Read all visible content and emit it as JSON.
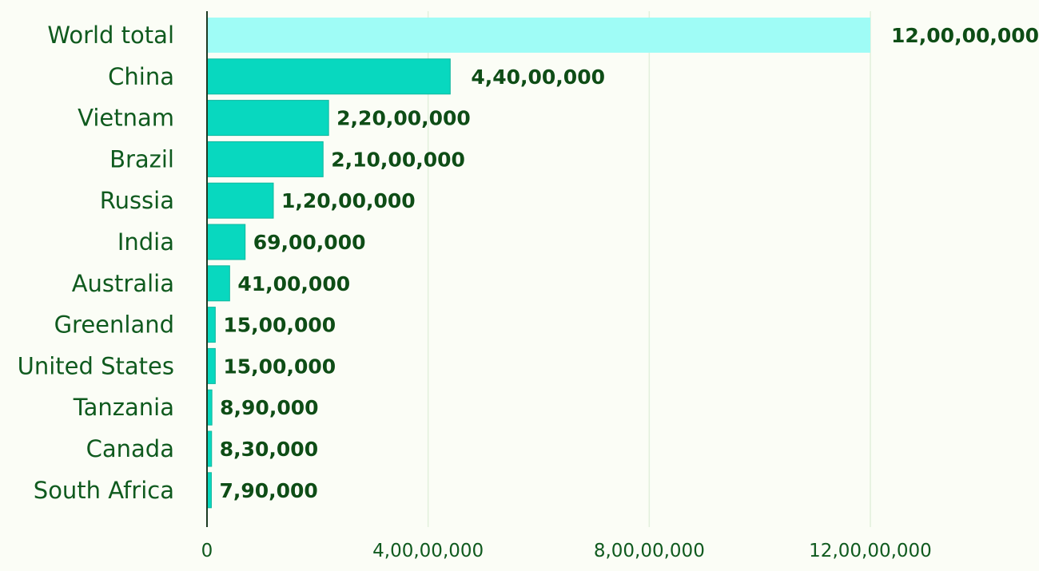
{
  "chart_data": {
    "type": "bar",
    "orientation": "horizontal",
    "title": "",
    "xlabel": "",
    "ylabel": "",
    "categories": [
      "World total",
      "China",
      "Vietnam",
      "Brazil",
      "Russia",
      "India",
      "Australia",
      "Greenland",
      "United States",
      "Tanzania",
      "Canada",
      "South Africa"
    ],
    "values": [
      120000000,
      44000000,
      22000000,
      21000000,
      12000000,
      6900000,
      4100000,
      1500000,
      1500000,
      890000,
      830000,
      790000
    ],
    "value_labels": [
      "12,00,00,000",
      "4,40,00,000",
      "2,20,00,000",
      "2,10,00,000",
      "1,20,00,000",
      "69,00,000",
      "41,00,000",
      "15,00,000",
      "15,00,000",
      "8,90,000",
      "8,30,000",
      "7,90,000"
    ],
    "xlim": [
      0,
      150000000
    ],
    "x_ticks": [
      0,
      40000000,
      80000000,
      120000000
    ],
    "x_tick_labels": [
      "0",
      "4,00,00,000",
      "8,00,00,000",
      "12,00,00,000"
    ],
    "grid": true,
    "legend": "none",
    "colors": {
      "highlight_bar": "#9ffcf6",
      "bar": "#08d8bf",
      "bar_edge": "#10b89f",
      "label_text": "#0f5a1e",
      "value_text": "#0e4d16",
      "axis": "#1c3a22",
      "grid": "#e2f0dc",
      "background": "#fbfdf6"
    }
  }
}
